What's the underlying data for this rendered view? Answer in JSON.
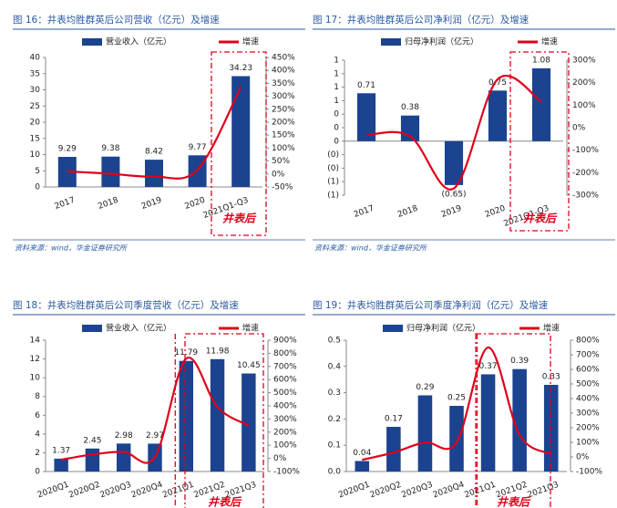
{
  "chart_data": [
    {
      "type": "bar_line",
      "title": "图 16：井表均胜群英后公司营收（亿元）及增速",
      "categories": [
        "2017",
        "2018",
        "2019",
        "2020",
        "2021Q1-Q3"
      ],
      "series": [
        {
          "name": "营业收入（亿元）",
          "color": "#1b4390",
          "type": "bar",
          "values": [
            9.29,
            9.38,
            8.42,
            9.77,
            34.23
          ]
        },
        {
          "name": "增速",
          "color": "#e0001b",
          "type": "line",
          "axis": "y2",
          "values": [
            10,
            1,
            -10,
            16,
            335
          ]
        }
      ],
      "ylim": [
        0,
        40
      ],
      "yticks": [
        0,
        5,
        10,
        15,
        20,
        25,
        30,
        35,
        40
      ],
      "y2lim": [
        -50,
        450
      ],
      "y2ticks": [
        {
          "value": -50,
          "label": "-50%"
        },
        {
          "value": 0,
          "label": "0%"
        },
        {
          "value": 50,
          "label": "50%"
        },
        {
          "value": 100,
          "label": "100%"
        },
        {
          "value": 150,
          "label": "150%"
        },
        {
          "value": 200,
          "label": "200%"
        },
        {
          "value": 250,
          "label": "250%"
        },
        {
          "value": 300,
          "label": "300%"
        },
        {
          "value": 350,
          "label": "350%"
        },
        {
          "value": 400,
          "label": "400%"
        },
        {
          "value": 450,
          "label": "450%"
        }
      ],
      "annotation": "井表后",
      "source": "资料来源：wind，华金证券研究所"
    },
    {
      "type": "bar_line",
      "title": "图 17：井表均胜群英后公司净利润（亿元）及增速",
      "categories": [
        "2017",
        "2018",
        "2019",
        "2020",
        "2021Q1-Q3"
      ],
      "series": [
        {
          "name": "归母净利润（亿元）",
          "color": "#1b4390",
          "type": "bar",
          "values": [
            0.71,
            0.38,
            -0.65,
            0.75,
            1.08
          ],
          "value_labels": [
            "0.71",
            "0.38",
            "(0.65)",
            "0.75",
            "1.08"
          ]
        },
        {
          "name": "增速",
          "color": "#e0001b",
          "type": "line",
          "axis": "y2",
          "values": [
            -33,
            -38,
            -270,
            215,
            115
          ]
        }
      ],
      "ylim": [
        -0.8,
        1.2
      ],
      "yticks": [
        {
          "value": -0.8,
          "label": "(1)"
        },
        {
          "value": -0.6,
          "label": "(1)"
        },
        {
          "value": -0.4,
          "label": "(0)"
        },
        {
          "value": -0.2,
          "label": "(0)"
        },
        0,
        {
          "value": 0.2,
          "label": "0"
        },
        {
          "value": 0.4,
          "label": "0"
        },
        {
          "value": 0.6,
          "label": "1"
        },
        {
          "value": 0.8,
          "label": "1"
        },
        {
          "value": 1.0,
          "label": "1"
        },
        {
          "value": 1.2,
          "label": "1"
        }
      ],
      "y2lim": [
        -300,
        300
      ],
      "y2ticks": [
        {
          "value": -300,
          "label": "-300%"
        },
        {
          "value": -200,
          "label": "-200%"
        },
        {
          "value": -100,
          "label": "-100%"
        },
        {
          "value": 0,
          "label": "0%"
        },
        {
          "value": 100,
          "label": "100%"
        },
        {
          "value": 200,
          "label": "200%"
        },
        {
          "value": 300,
          "label": "300%"
        }
      ],
      "annotation": "井表后",
      "source": "资料来源：wind，华金证券研究所"
    },
    {
      "type": "bar_line",
      "title": "图 18：井表均胜群英后公司季度营收（亿元）及增速",
      "categories": [
        "2020Q1",
        "2020Q2",
        "2020Q3",
        "2020Q4",
        "2021Q1",
        "2021Q2",
        "2021Q3"
      ],
      "series": [
        {
          "name": "营业收入（亿元）",
          "color": "#1b4390",
          "type": "bar",
          "values": [
            1.37,
            2.45,
            2.98,
            2.97,
            11.79,
            11.98,
            10.45
          ]
        },
        {
          "name": "增速",
          "color": "#e0001b",
          "type": "line",
          "axis": "y2",
          "values": [
            -10,
            30,
            50,
            10,
            760,
            390,
            250
          ]
        }
      ],
      "ylim": [
        0,
        14
      ],
      "yticks": [
        0,
        2,
        4,
        6,
        8,
        10,
        12,
        14
      ],
      "y2lim": [
        -100,
        900
      ],
      "y2ticks": [
        {
          "value": -100,
          "label": "-100%"
        },
        {
          "value": 0,
          "label": "0%"
        },
        {
          "value": 100,
          "label": "100%"
        },
        {
          "value": 200,
          "label": "200%"
        },
        {
          "value": 300,
          "label": "300%"
        },
        {
          "value": 400,
          "label": "400%"
        },
        {
          "value": 500,
          "label": "500%"
        },
        {
          "value": 600,
          "label": "600%"
        },
        {
          "value": 700,
          "label": "700%"
        },
        {
          "value": 800,
          "label": "800%"
        },
        {
          "value": 900,
          "label": "900%"
        }
      ],
      "annotation": "井表后"
    },
    {
      "type": "bar_line",
      "title": "图 19：井表均胜群英后公司季度净利润（亿元）及增速",
      "categories": [
        "2020Q1",
        "2020Q2",
        "2020Q3",
        "2020Q4",
        "2021Q1",
        "2021Q2",
        "2021Q3"
      ],
      "series": [
        {
          "name": "归母净利润（亿元）",
          "color": "#1b4390",
          "type": "bar",
          "values": [
            0.04,
            0.17,
            0.29,
            0.25,
            0.37,
            0.39,
            0.33
          ]
        },
        {
          "name": "增速",
          "color": "#e0001b",
          "type": "line",
          "axis": "y2",
          "values": [
            -20,
            30,
            100,
            100,
            750,
            150,
            20
          ]
        }
      ],
      "ylim": [
        0,
        0.5
      ],
      "yticks": [
        {
          "value": 0,
          "label": "0.0"
        },
        0.1,
        0.2,
        0.3,
        0.4,
        0.5
      ],
      "y2lim": [
        -100,
        800
      ],
      "y2ticks": [
        {
          "value": -100,
          "label": "-100%"
        },
        {
          "value": 0,
          "label": "0%"
        },
        {
          "value": 100,
          "label": "100%"
        },
        {
          "value": 200,
          "label": "200%"
        },
        {
          "value": 300,
          "label": "300%"
        },
        {
          "value": 400,
          "label": "400%"
        },
        {
          "value": 500,
          "label": "500%"
        },
        {
          "value": 600,
          "label": "600%"
        },
        {
          "value": 700,
          "label": "700%"
        },
        {
          "value": 800,
          "label": "800%"
        }
      ],
      "annotation": "井表后"
    }
  ]
}
